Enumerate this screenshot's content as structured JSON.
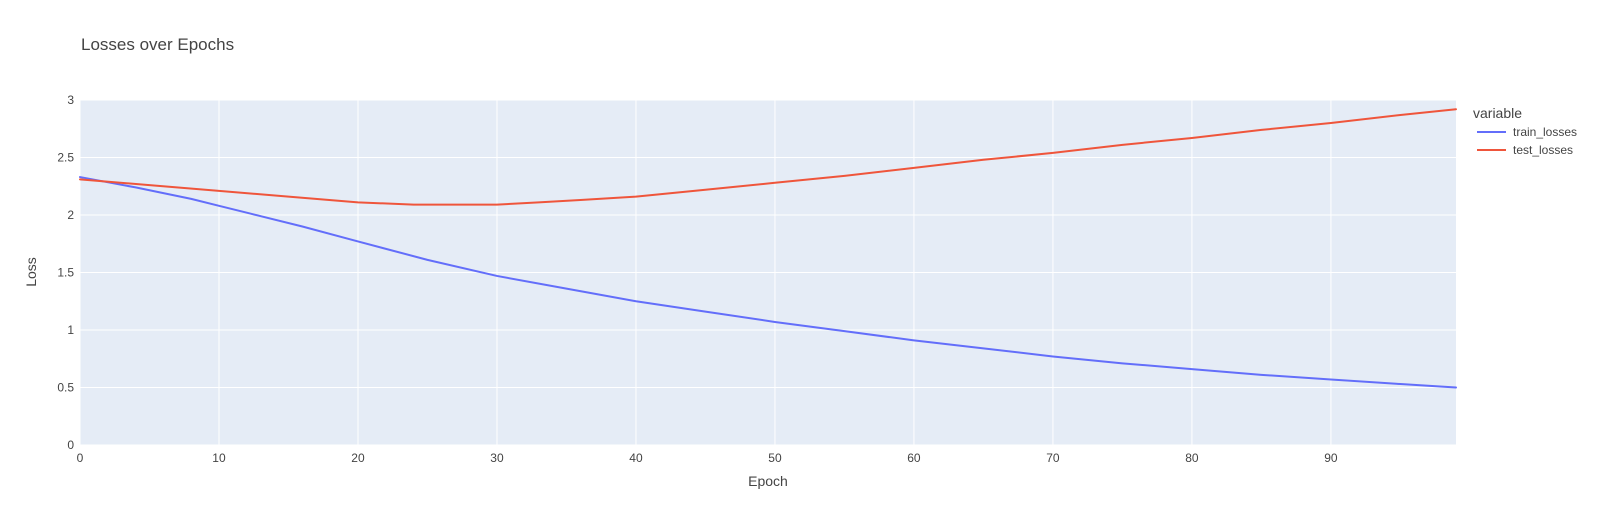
{
  "chart_data": {
    "type": "line",
    "title": "Losses over Epochs",
    "xlabel": "Epoch",
    "ylabel": "Loss",
    "xlim": [
      0,
      99
    ],
    "ylim": [
      0,
      3
    ],
    "xticks": [
      0,
      10,
      20,
      30,
      40,
      50,
      60,
      70,
      80,
      90
    ],
    "yticks": [
      0,
      0.5,
      1,
      1.5,
      2,
      2.5,
      3
    ],
    "grid": true,
    "legend": {
      "title": "variable",
      "position": "right-top"
    },
    "plot_background": "#E5ECF6",
    "series": [
      {
        "name": "train_losses",
        "color": "#636EFA",
        "x": [
          0,
          4,
          8,
          10,
          12,
          16,
          20,
          25,
          30,
          35,
          40,
          45,
          50,
          55,
          60,
          65,
          70,
          75,
          80,
          85,
          90,
          95,
          99
        ],
        "y": [
          2.33,
          2.24,
          2.14,
          2.08,
          2.02,
          1.9,
          1.77,
          1.61,
          1.47,
          1.36,
          1.25,
          1.16,
          1.07,
          0.99,
          0.91,
          0.84,
          0.77,
          0.71,
          0.66,
          0.61,
          0.57,
          0.53,
          0.5
        ]
      },
      {
        "name": "test_losses",
        "color": "#EF553B",
        "x": [
          0,
          5,
          10,
          15,
          20,
          24,
          28,
          30,
          33,
          36,
          40,
          45,
          50,
          55,
          60,
          65,
          70,
          75,
          80,
          85,
          90,
          95,
          99
        ],
        "y": [
          2.31,
          2.26,
          2.21,
          2.16,
          2.11,
          2.09,
          2.09,
          2.09,
          2.11,
          2.13,
          2.16,
          2.22,
          2.28,
          2.34,
          2.41,
          2.48,
          2.54,
          2.61,
          2.67,
          2.74,
          2.8,
          2.87,
          2.92
        ]
      }
    ]
  }
}
